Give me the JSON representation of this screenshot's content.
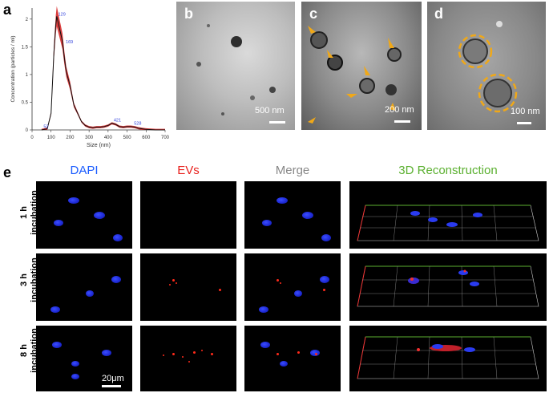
{
  "panels": {
    "a": "a",
    "b": "b",
    "c": "c",
    "d": "d",
    "e": "e"
  },
  "chart_data": {
    "type": "line",
    "xlabel": "Size (nm)",
    "ylabel": "Concentration (particles / ml)",
    "xlim": [
      0,
      700
    ],
    "ylim": [
      0,
      2.2
    ],
    "xticks": [
      "0",
      "100",
      "200",
      "300",
      "400",
      "500",
      "600",
      "700"
    ],
    "yticks": [
      "0",
      "0.5",
      "1",
      "1.5",
      "2"
    ],
    "series": [
      {
        "x": [
          50,
          80,
          100,
          115,
          125,
          130,
          140,
          150,
          160,
          170,
          180,
          200,
          220,
          240,
          260,
          280,
          300,
          320,
          340,
          360,
          380,
          400,
          420,
          440,
          460,
          480,
          500,
          520,
          540,
          560,
          580,
          600,
          650,
          700
        ],
        "values": [
          0,
          0.02,
          0.3,
          1.4,
          1.9,
          2.05,
          1.9,
          1.75,
          1.6,
          1.3,
          1.05,
          0.8,
          0.45,
          0.3,
          0.15,
          0.08,
          0.05,
          0.04,
          0.05,
          0.05,
          0.06,
          0.08,
          0.12,
          0.1,
          0.06,
          0.05,
          0.06,
          0.06,
          0.05,
          0.03,
          0.02,
          0.01,
          0.0,
          0.0
        ]
      }
    ],
    "annotations": [
      "129",
      "169",
      "421",
      "528",
      "52"
    ]
  },
  "em": {
    "b_scale": "500 nm",
    "c_scale": "200 nm",
    "d_scale": "100 nm"
  },
  "grid": {
    "columns": [
      "DAPI",
      "EVs",
      "Merge",
      "3D Reconstruction"
    ],
    "column_colors": [
      "#1a5cff",
      "#e8211d",
      "#888888",
      "#5bb030"
    ],
    "rows": [
      {
        "time": "1 h",
        "label": "incubation"
      },
      {
        "time": "3 h",
        "label": "incubation"
      },
      {
        "time": "8 h",
        "label": "incubation"
      }
    ],
    "scale": "20μm"
  }
}
